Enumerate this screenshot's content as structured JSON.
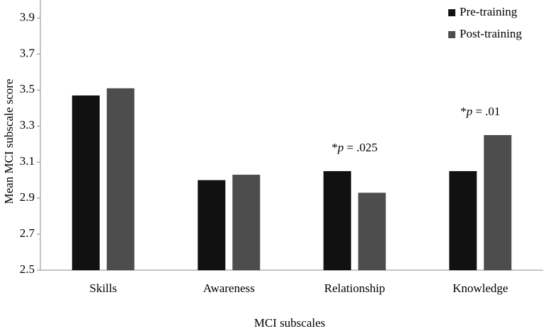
{
  "chart_data": {
    "type": "bar",
    "x_label": "MCI subscales",
    "y_label": "Mean MCI subscale score",
    "categories": [
      "Skills",
      "Awareness",
      "Relationship",
      "Knowledge"
    ],
    "series": [
      {
        "name": "Pre-training",
        "color": "#111111",
        "values": [
          3.47,
          3.0,
          3.05,
          3.05
        ]
      },
      {
        "name": "Post-training",
        "color": "#4d4d4d",
        "values": [
          3.51,
          3.03,
          2.93,
          3.25
        ]
      }
    ],
    "ylim": [
      2.5,
      4.0
    ],
    "yticks": [
      2.5,
      2.7,
      2.9,
      3.1,
      3.3,
      3.5,
      3.7,
      3.9
    ],
    "legend": "top-right",
    "annotations": [
      {
        "category": "Relationship",
        "prefix": "*",
        "italic": "p",
        "text": " = .025"
      },
      {
        "category": "Knowledge",
        "prefix": "*",
        "italic": "p",
        "text": " = .01"
      }
    ]
  }
}
